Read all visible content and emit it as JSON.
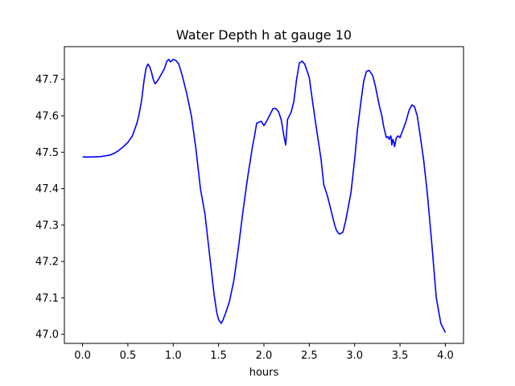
{
  "chart_data": {
    "type": "line",
    "title": "Water Depth h at gauge 10",
    "xlabel": "hours",
    "ylabel": "",
    "xlim": [
      -0.2,
      4.2
    ],
    "ylim": [
      46.975,
      47.79
    ],
    "grid": false,
    "xticks": [
      0.0,
      0.5,
      1.0,
      1.5,
      2.0,
      2.5,
      3.0,
      3.5,
      4.0
    ],
    "xtick_labels": [
      "0.0",
      "0.5",
      "1.0",
      "1.5",
      "2.0",
      "2.5",
      "3.0",
      "3.5",
      "4.0"
    ],
    "yticks": [
      47.0,
      47.1,
      47.2,
      47.3,
      47.4,
      47.5,
      47.6,
      47.7
    ],
    "ytick_labels": [
      "47.0",
      "47.1",
      "47.2",
      "47.3",
      "47.4",
      "47.5",
      "47.6",
      "47.7"
    ],
    "series": [
      {
        "name": "",
        "color": "#0000ff",
        "x": [
          0.0,
          0.1,
          0.2,
          0.3,
          0.35,
          0.4,
          0.45,
          0.5,
          0.55,
          0.6,
          0.62,
          0.65,
          0.68,
          0.7,
          0.72,
          0.74,
          0.76,
          0.78,
          0.8,
          0.83,
          0.87,
          0.9,
          0.93,
          0.95,
          0.97,
          1.0,
          1.03,
          1.06,
          1.1,
          1.15,
          1.2,
          1.25,
          1.3,
          1.35,
          1.4,
          1.45,
          1.48,
          1.5,
          1.53,
          1.55,
          1.58,
          1.62,
          1.67,
          1.72,
          1.77,
          1.82,
          1.87,
          1.9,
          1.92,
          1.95,
          1.97,
          2.0,
          2.03,
          2.07,
          2.1,
          2.13,
          2.16,
          2.19,
          2.22,
          2.24,
          2.26,
          2.3,
          2.33,
          2.36,
          2.39,
          2.42,
          2.45,
          2.48,
          2.5,
          2.53,
          2.57,
          2.6,
          2.63,
          2.66,
          2.7,
          2.74,
          2.78,
          2.8,
          2.83,
          2.87,
          2.9,
          2.93,
          2.96,
          3.0,
          3.03,
          3.07,
          3.1,
          3.13,
          3.16,
          3.2,
          3.23,
          3.27,
          3.3,
          3.32,
          3.34,
          3.35,
          3.37,
          3.38,
          3.4,
          3.41,
          3.42,
          3.43,
          3.44,
          3.46,
          3.48,
          3.5,
          3.53,
          3.56,
          3.6,
          3.63,
          3.66,
          3.69,
          3.72,
          3.76,
          3.8,
          3.85,
          3.9,
          3.95,
          4.0
        ],
        "y": [
          47.487,
          47.487,
          47.488,
          47.492,
          47.497,
          47.505,
          47.515,
          47.527,
          47.545,
          47.58,
          47.6,
          47.64,
          47.7,
          47.73,
          47.742,
          47.735,
          47.72,
          47.7,
          47.688,
          47.697,
          47.715,
          47.728,
          47.75,
          47.755,
          47.748,
          47.755,
          47.752,
          47.743,
          47.71,
          47.66,
          47.6,
          47.51,
          47.4,
          47.33,
          47.22,
          47.11,
          47.06,
          47.04,
          47.03,
          47.04,
          47.06,
          47.09,
          47.15,
          47.24,
          47.34,
          47.43,
          47.51,
          47.55,
          47.58,
          47.583,
          47.585,
          47.573,
          47.585,
          47.605,
          47.62,
          47.62,
          47.612,
          47.59,
          47.545,
          47.52,
          47.59,
          47.61,
          47.64,
          47.7,
          47.745,
          47.75,
          47.742,
          47.72,
          47.705,
          47.65,
          47.58,
          47.53,
          47.48,
          47.41,
          47.38,
          47.34,
          47.3,
          47.285,
          47.275,
          47.28,
          47.31,
          47.35,
          47.39,
          47.48,
          47.56,
          47.64,
          47.695,
          47.722,
          47.725,
          47.71,
          47.68,
          47.63,
          47.6,
          47.57,
          47.55,
          47.54,
          47.543,
          47.535,
          47.545,
          47.52,
          47.535,
          47.53,
          47.515,
          47.54,
          47.545,
          47.54,
          47.56,
          47.58,
          47.615,
          47.63,
          47.625,
          47.6,
          47.55,
          47.48,
          47.39,
          47.25,
          47.1,
          47.03,
          47.005
        ]
      }
    ]
  }
}
